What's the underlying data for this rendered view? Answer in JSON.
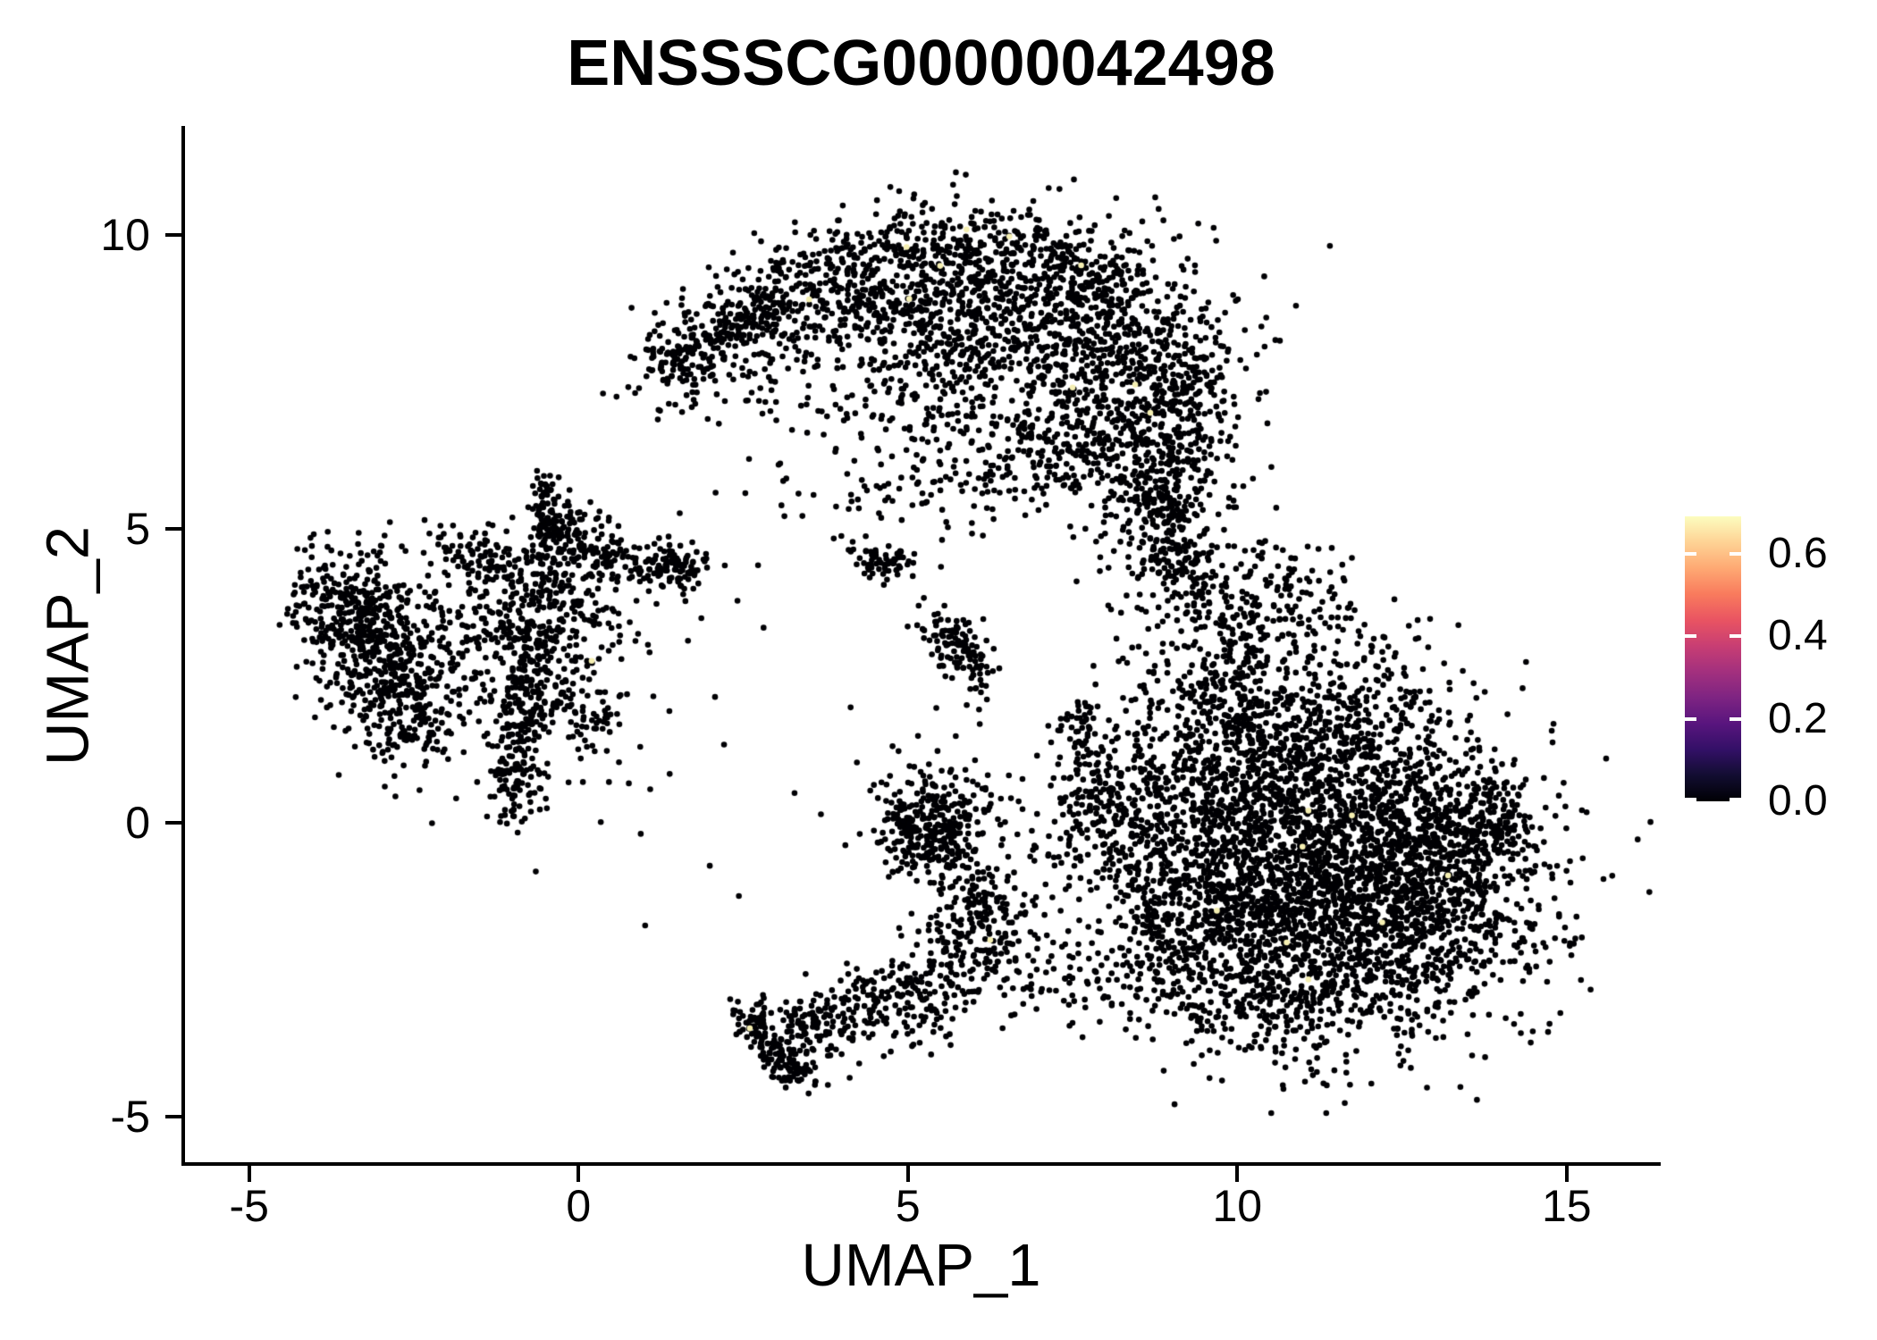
{
  "title": "ENSSSCG00000042498",
  "chart_data": {
    "type": "scatter",
    "title": "ENSSSCG00000042498",
    "xlabel": "UMAP_1",
    "ylabel": "UMAP_2",
    "xlim": [
      -6.0,
      16.4
    ],
    "ylim": [
      -5.81,
      11.82
    ],
    "grid": false,
    "x_ticks": [
      {
        "value": -5,
        "label": "-5"
      },
      {
        "value": 0,
        "label": "0"
      },
      {
        "value": 5,
        "label": "5"
      },
      {
        "value": 10,
        "label": "10"
      },
      {
        "value": 15,
        "label": "15"
      }
    ],
    "y_ticks": [
      {
        "value": -5,
        "label": "-5"
      },
      {
        "value": 0,
        "label": "0"
      },
      {
        "value": 5,
        "label": "5"
      },
      {
        "value": 10,
        "label": "10"
      }
    ],
    "legend": {
      "position": "right",
      "min": 0.0,
      "max": 0.69,
      "ticks": [
        {
          "value": 0.0,
          "label": "0.0"
        },
        {
          "value": 0.2,
          "label": "0.2"
        },
        {
          "value": 0.4,
          "label": "0.4"
        },
        {
          "value": 0.6,
          "label": "0.6"
        }
      ],
      "colormap": "magma",
      "gradient": [
        "#000004",
        "#120d31",
        "#331067",
        "#59157e",
        "#7e2482",
        "#a3307e",
        "#c83e73",
        "#e95462",
        "#f97b5d",
        "#fea973",
        "#fed395",
        "#fcfdbf"
      ]
    },
    "point_color": "#000004",
    "high_point_color": "#f5efb2",
    "point_radius": 3.3,
    "seed": 1234,
    "clusters": [
      {
        "type": "arc",
        "pts": [
          [
            1.15,
            7.55
          ],
          [
            2.1,
            8.35
          ],
          [
            3.1,
            9.0
          ],
          [
            4.2,
            9.65
          ],
          [
            5.4,
            9.95
          ],
          [
            6.6,
            9.8
          ],
          [
            7.6,
            9.4
          ],
          [
            8.4,
            8.8
          ],
          [
            9.0,
            8.0
          ],
          [
            9.35,
            7.0
          ],
          [
            9.45,
            6.1
          ]
        ],
        "w": 0.42,
        "n": 820
      },
      {
        "type": "blob",
        "cx": 6.7,
        "cy": 8.6,
        "sx": 1.5,
        "sy": 0.85,
        "n": 850
      },
      {
        "type": "blob",
        "cx": 8.35,
        "cy": 7.0,
        "sx": 0.75,
        "sy": 0.85,
        "n": 350
      },
      {
        "type": "blob",
        "cx": 7.2,
        "cy": 6.25,
        "sx": 0.75,
        "sy": 0.5,
        "n": 160
      },
      {
        "type": "blob",
        "cx": 4.7,
        "cy": 8.9,
        "sx": 0.95,
        "sy": 0.5,
        "n": 230
      },
      {
        "type": "blob",
        "cx": 3.4,
        "cy": 7.6,
        "sx": 0.85,
        "sy": 0.75,
        "n": 110
      },
      {
        "type": "blob",
        "cx": 5.6,
        "cy": 7.15,
        "sx": 0.9,
        "sy": 0.65,
        "n": 120
      },
      {
        "type": "strand",
        "x1": 1.2,
        "y1": 7.6,
        "x2": 3.0,
        "y2": 8.9,
        "w": 0.2,
        "n": 120
      },
      {
        "type": "blob",
        "cx": 5.2,
        "cy": 5.75,
        "sx": 1.3,
        "sy": 0.45,
        "n": 90
      },
      {
        "type": "arc",
        "pts": [
          [
            9.0,
            6.3
          ],
          [
            9.05,
            5.4
          ],
          [
            9.2,
            4.6
          ],
          [
            9.55,
            3.8
          ],
          [
            9.9,
            3.0
          ],
          [
            10.15,
            2.4
          ]
        ],
        "w": 0.3,
        "n": 280
      },
      {
        "type": "blob",
        "cx": 8.75,
        "cy": 5.1,
        "sx": 0.35,
        "sy": 0.95,
        "n": 170
      },
      {
        "type": "strand",
        "x1": 10.3,
        "y1": 4.5,
        "x2": 12.9,
        "y2": 1.6,
        "w": 0.5,
        "n": 190
      },
      {
        "type": "blob",
        "cx": 10.3,
        "cy": 2.9,
        "sx": 0.9,
        "sy": 0.85,
        "n": 160
      },
      {
        "type": "blob",
        "cx": 11.3,
        "cy": -0.9,
        "sx": 1.5,
        "sy": 1.3,
        "n": 2250
      },
      {
        "type": "blob",
        "cx": 10.1,
        "cy": 0.7,
        "sx": 0.95,
        "sy": 0.8,
        "n": 480
      },
      {
        "type": "blob",
        "cx": 12.7,
        "cy": -1.6,
        "sx": 0.95,
        "sy": 0.85,
        "n": 480
      },
      {
        "type": "blob",
        "cx": 9.6,
        "cy": -1.8,
        "sx": 0.7,
        "sy": 0.9,
        "n": 300
      },
      {
        "type": "blob",
        "cx": 12.9,
        "cy": 0.2,
        "sx": 0.7,
        "sy": 0.55,
        "n": 220
      },
      {
        "type": "blob",
        "cx": 13.9,
        "cy": 0.05,
        "sx": 0.33,
        "sy": 0.5,
        "n": 130
      },
      {
        "type": "strand",
        "x1": 8.9,
        "y1": 2.2,
        "x2": 12.4,
        "y2": 1.3,
        "w": 0.35,
        "n": 250
      },
      {
        "type": "strand",
        "x1": 8.6,
        "y1": 1.6,
        "x2": 8.75,
        "y2": -2.6,
        "w": 0.3,
        "n": 160
      },
      {
        "type": "blob",
        "cx": 10.6,
        "cy": -3.1,
        "sx": 1.0,
        "sy": 0.45,
        "n": 190
      },
      {
        "type": "blob",
        "cx": 5.35,
        "cy": -0.15,
        "sx": 0.42,
        "sy": 0.42,
        "n": 260
      },
      {
        "type": "blob",
        "cx": 5.5,
        "cy": 0.3,
        "sx": 0.65,
        "sy": 0.5,
        "n": 80
      },
      {
        "type": "strand",
        "x1": 5.7,
        "y1": -0.6,
        "x2": 6.6,
        "y2": -2.3,
        "w": 0.3,
        "n": 120
      },
      {
        "type": "strand",
        "x1": 6.5,
        "y1": -1.2,
        "x2": 8.3,
        "y2": -0.3,
        "w": 0.55,
        "n": 80
      },
      {
        "type": "strand",
        "x1": 6.6,
        "y1": -2.5,
        "x2": 8.4,
        "y2": -2.9,
        "w": 0.4,
        "n": 60
      },
      {
        "type": "arc",
        "pts": [
          [
            2.62,
            -3.1
          ],
          [
            2.72,
            -3.6
          ],
          [
            2.95,
            -4.0
          ],
          [
            3.2,
            -4.25
          ],
          [
            3.5,
            -4.3
          ]
        ],
        "w": 0.14,
        "n": 150
      },
      {
        "type": "strand",
        "x1": 3.2,
        "y1": -3.95,
        "x2": 6.3,
        "y2": -1.5,
        "w": 0.3,
        "n": 260
      },
      {
        "type": "strand",
        "x1": 4.6,
        "y1": -3.4,
        "x2": 6.4,
        "y2": -2.6,
        "w": 0.35,
        "n": 110
      },
      {
        "type": "blob",
        "cx": 3.35,
        "cy": -3.5,
        "sx": 0.25,
        "sy": 0.3,
        "n": 55
      },
      {
        "type": "strand",
        "x1": 7.55,
        "y1": 2.3,
        "x2": 7.65,
        "y2": -0.2,
        "w": 0.22,
        "n": 100
      },
      {
        "type": "strand",
        "x1": 7.95,
        "y1": 1.3,
        "x2": 8.05,
        "y2": -0.6,
        "w": 0.2,
        "n": 60
      },
      {
        "type": "arc",
        "pts": [
          [
            4.15,
            4.75
          ],
          [
            4.45,
            4.35
          ],
          [
            4.75,
            4.3
          ],
          [
            5.05,
            4.55
          ]
        ],
        "w": 0.13,
        "n": 65
      },
      {
        "type": "strand",
        "x1": 5.45,
        "y1": 3.4,
        "x2": 6.0,
        "y2": 2.55,
        "w": 0.2,
        "n": 110
      },
      {
        "type": "blob",
        "cx": 6.0,
        "cy": 2.15,
        "sx": 0.15,
        "sy": 0.15,
        "n": 7
      },
      {
        "type": "blob",
        "cx": -3.85,
        "cy": 3.85,
        "sx": 0.28,
        "sy": 0.5,
        "n": 85
      },
      {
        "type": "strand",
        "x1": -3.6,
        "y1": 3.95,
        "x2": -3.0,
        "y2": 3.7,
        "w": 0.15,
        "n": 45
      },
      {
        "type": "blob",
        "cx": -2.9,
        "cy": 2.9,
        "sx": 0.55,
        "sy": 0.65,
        "n": 310
      },
      {
        "type": "blob",
        "cx": -2.6,
        "cy": 1.9,
        "sx": 0.4,
        "sy": 0.5,
        "n": 140
      },
      {
        "type": "blob",
        "cx": -3.3,
        "cy": 3.3,
        "sx": 0.35,
        "sy": 0.45,
        "n": 110
      },
      {
        "type": "blob",
        "cx": -1.7,
        "cy": 2.6,
        "sx": 0.8,
        "sy": 1.0,
        "n": 120
      },
      {
        "type": "strand",
        "x1": -0.55,
        "y1": 5.9,
        "x2": -0.45,
        "y2": 4.4,
        "w": 0.15,
        "n": 100
      },
      {
        "type": "blob",
        "cx": -0.55,
        "cy": 3.6,
        "sx": 0.65,
        "sy": 0.6,
        "n": 310
      },
      {
        "type": "strand",
        "x1": -1.05,
        "y1": 4.3,
        "x2": -2.0,
        "y2": 4.65,
        "w": 0.25,
        "n": 80
      },
      {
        "type": "strand",
        "x1": -0.5,
        "y1": 5.25,
        "x2": 0.5,
        "y2": 4.6,
        "w": 0.2,
        "n": 80
      },
      {
        "type": "strand",
        "x1": 0.0,
        "y1": 4.45,
        "x2": 1.45,
        "y2": 4.4,
        "w": 0.18,
        "n": 100
      },
      {
        "type": "blob",
        "cx": 1.5,
        "cy": 4.35,
        "sx": 0.22,
        "sy": 0.28,
        "n": 65
      },
      {
        "type": "blob",
        "cx": 1.95,
        "cy": 4.5,
        "sx": 0.1,
        "sy": 0.1,
        "n": 6
      },
      {
        "type": "strand",
        "x1": -0.75,
        "y1": 3.0,
        "x2": -0.85,
        "y2": 1.2,
        "w": 0.2,
        "n": 140
      },
      {
        "type": "blob",
        "cx": -0.9,
        "cy": 0.65,
        "sx": 0.25,
        "sy": 0.35,
        "n": 85
      },
      {
        "type": "strand",
        "x1": -0.35,
        "y1": 2.2,
        "x2": 0.45,
        "y2": 1.6,
        "w": 0.3,
        "n": 65
      },
      {
        "type": "blob",
        "cx": -0.2,
        "cy": 2.0,
        "sx": 1.1,
        "sy": 1.3,
        "n": 80
      },
      {
        "type": "blob",
        "cx": -3.1,
        "cy": 4.55,
        "sx": 0.2,
        "sy": 0.2,
        "n": 22
      },
      {
        "type": "blob",
        "cx": 3.0,
        "cy": 2.0,
        "sx": 2.5,
        "sy": 2.5,
        "n": 22
      }
    ],
    "high_points": [
      [
        4.98,
        9.79
      ],
      [
        5.89,
        10.09
      ],
      [
        6.54,
        9.97
      ],
      [
        5.49,
        9.47
      ],
      [
        7.63,
        9.48
      ],
      [
        3.5,
        8.9
      ],
      [
        5.02,
        8.91
      ],
      [
        8.45,
        7.45
      ],
      [
        8.68,
        6.97
      ],
      [
        7.5,
        7.4
      ],
      [
        11.08,
        0.2
      ],
      [
        11.74,
        0.12
      ],
      [
        10.99,
        -0.41
      ],
      [
        9.69,
        -1.5
      ],
      [
        10.75,
        -2.04
      ],
      [
        11.08,
        -2.67
      ],
      [
        13.2,
        -0.9
      ],
      [
        2.6,
        -3.5
      ],
      [
        6.25,
        -2.0
      ],
      [
        0.2,
        2.75
      ],
      [
        12.2,
        -1.7
      ]
    ]
  }
}
